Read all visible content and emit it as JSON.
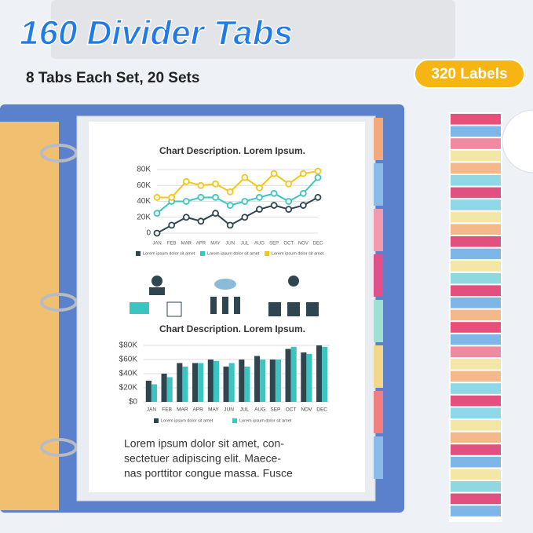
{
  "header": {
    "title": "160 Divider Tabs",
    "subtitle": "8 Tabs Each Set, 20 Sets",
    "badge": "320 Labels"
  },
  "chart_data": [
    {
      "type": "line",
      "title": "Chart Description. Lorem Ipsum.",
      "categories": [
        "JAN",
        "FEB",
        "MAR",
        "APR",
        "MAY",
        "JUN",
        "JUL",
        "AUG",
        "SEP",
        "OCT",
        "NOV",
        "DEC"
      ],
      "series": [
        {
          "name": "Lorem ipsum dolor sit amet",
          "color": "#2f4650",
          "values": [
            0,
            10,
            20,
            15,
            25,
            10,
            20,
            30,
            35,
            30,
            35,
            45
          ]
        },
        {
          "name": "Lorem ipsum dolor sit amet",
          "color": "#3cc5c0",
          "values": [
            25,
            40,
            40,
            45,
            45,
            35,
            40,
            45,
            50,
            40,
            50,
            70
          ]
        },
        {
          "name": "Lorem ipsum dolor sit amet",
          "color": "#f5c518",
          "values": [
            45,
            45,
            65,
            60,
            62,
            52,
            70,
            57,
            75,
            62,
            75,
            78
          ]
        }
      ],
      "ylim": [
        0,
        80
      ],
      "yticks": [
        0,
        {
          "value": 20,
          "label": "20K"
        },
        {
          "value": 40,
          "label": "40K"
        },
        {
          "value": 60,
          "label": "60K"
        },
        {
          "value": 80,
          "label": "80K"
        }
      ],
      "grid": true
    },
    {
      "type": "bar",
      "title": "Chart Description. Lorem Ipsum.",
      "categories": [
        "JAN",
        "FEB",
        "MAR",
        "APR",
        "MAY",
        "JUN",
        "JUL",
        "AUG",
        "SEP",
        "OCT",
        "NOV",
        "DEC"
      ],
      "series": [
        {
          "name": "Lorem ipsum dolor sit amet",
          "color": "#2f4650",
          "values": [
            30,
            40,
            55,
            55,
            60,
            50,
            60,
            65,
            60,
            75,
            70,
            80
          ]
        },
        {
          "name": "Lorem ipsum dolor sit amet",
          "color": "#3cc5c0",
          "values": [
            25,
            35,
            50,
            55,
            58,
            55,
            50,
            60,
            60,
            78,
            68,
            78
          ]
        }
      ],
      "ylim": [
        0,
        80
      ],
      "yticks": [
        {
          "value": 0,
          "label": "$0"
        },
        {
          "value": 20,
          "label": "$20K"
        },
        {
          "value": 40,
          "label": "$40K"
        },
        {
          "value": 60,
          "label": "$60K"
        },
        {
          "value": 80,
          "label": "$80K"
        }
      ],
      "grid": true
    }
  ],
  "paragraph": [
    "Lorem ipsum dolor sit amet, con-",
    "sectetuer adipiscing elit. Maece-",
    "nas porttitor congue massa. Fusce"
  ]
}
